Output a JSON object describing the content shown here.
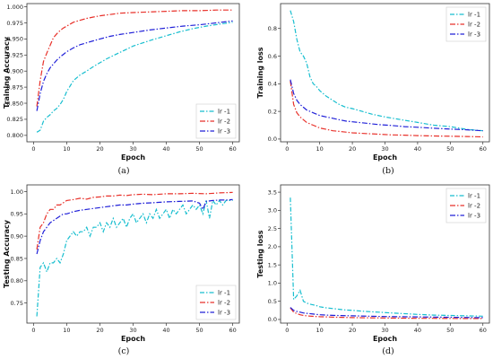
{
  "chart_data": [
    {
      "type": "line",
      "caption": "(a)",
      "xlabel": "Epoch",
      "ylabel": "Training Accuracy",
      "xlim": [
        -2,
        62
      ],
      "ylim": [
        0.79,
        1.005
      ],
      "xticks": [
        0,
        10,
        20,
        30,
        40,
        50,
        60
      ],
      "yticks": [
        0.8,
        0.825,
        0.85,
        0.875,
        0.9,
        0.925,
        0.95,
        0.975,
        1.0
      ],
      "ytick_labels": [
        "0.800",
        "0.825",
        "0.850",
        "0.875",
        "0.900",
        "0.925",
        "0.950",
        "0.975",
        "1.000"
      ],
      "legend_position": "bottom-right",
      "grid": false,
      "series": [
        {
          "name": "lr -1",
          "color": "#17BECF",
          "x": [
            1,
            2,
            3,
            4,
            5,
            6,
            7,
            8,
            9,
            10,
            12,
            14,
            16,
            18,
            20,
            22,
            24,
            26,
            28,
            30,
            33,
            36,
            40,
            44,
            48,
            52,
            56,
            60
          ],
          "y": [
            0.805,
            0.808,
            0.822,
            0.828,
            0.832,
            0.838,
            0.842,
            0.848,
            0.856,
            0.868,
            0.885,
            0.894,
            0.9,
            0.907,
            0.913,
            0.919,
            0.924,
            0.929,
            0.934,
            0.939,
            0.944,
            0.949,
            0.955,
            0.961,
            0.966,
            0.97,
            0.973,
            0.976
          ]
        },
        {
          "name": "lr -2",
          "color": "#E8312A",
          "x": [
            1,
            2,
            3,
            4,
            5,
            6,
            7,
            8,
            9,
            10,
            12,
            14,
            16,
            18,
            20,
            23,
            26,
            30,
            35,
            40,
            45,
            50,
            55,
            60
          ],
          "y": [
            0.845,
            0.885,
            0.915,
            0.928,
            0.94,
            0.952,
            0.958,
            0.963,
            0.967,
            0.97,
            0.976,
            0.979,
            0.982,
            0.984,
            0.986,
            0.988,
            0.99,
            0.991,
            0.992,
            0.993,
            0.994,
            0.994,
            0.995,
            0.995
          ]
        },
        {
          "name": "lr -3",
          "color": "#2020D8",
          "x": [
            1,
            2,
            3,
            4,
            5,
            6,
            7,
            8,
            9,
            10,
            12,
            14,
            16,
            18,
            20,
            23,
            26,
            30,
            35,
            40,
            45,
            50,
            55,
            60
          ],
          "y": [
            0.838,
            0.865,
            0.884,
            0.896,
            0.905,
            0.911,
            0.917,
            0.922,
            0.926,
            0.93,
            0.936,
            0.941,
            0.944,
            0.947,
            0.95,
            0.954,
            0.957,
            0.96,
            0.964,
            0.967,
            0.97,
            0.972,
            0.975,
            0.978
          ]
        }
      ]
    },
    {
      "type": "line",
      "caption": "(b)",
      "xlabel": "Epoch",
      "ylabel": "Training loss",
      "xlim": [
        -2,
        62
      ],
      "ylim": [
        -0.02,
        0.98
      ],
      "xticks": [
        0,
        10,
        20,
        30,
        40,
        50,
        60
      ],
      "yticks": [
        0.0,
        0.2,
        0.4,
        0.6,
        0.8
      ],
      "ytick_labels": [
        "0.0",
        "0.2",
        "0.4",
        "0.6",
        "0.8"
      ],
      "legend_position": "top-right",
      "grid": false,
      "series": [
        {
          "name": "lr -1",
          "color": "#17BECF",
          "x": [
            1,
            2,
            3,
            4,
            5,
            6,
            7,
            8,
            9,
            10,
            12,
            14,
            16,
            18,
            20,
            23,
            26,
            30,
            35,
            40,
            45,
            50,
            55,
            60
          ],
          "y": [
            0.93,
            0.85,
            0.72,
            0.63,
            0.6,
            0.55,
            0.45,
            0.4,
            0.38,
            0.35,
            0.31,
            0.28,
            0.25,
            0.23,
            0.22,
            0.2,
            0.18,
            0.16,
            0.14,
            0.12,
            0.1,
            0.09,
            0.07,
            0.06
          ]
        },
        {
          "name": "lr -2",
          "color": "#E8312A",
          "x": [
            1,
            2,
            3,
            4,
            5,
            6,
            7,
            8,
            10,
            12,
            14,
            16,
            18,
            20,
            24,
            28,
            32,
            36,
            40,
            45,
            50,
            55,
            60
          ],
          "y": [
            0.42,
            0.25,
            0.19,
            0.16,
            0.14,
            0.12,
            0.11,
            0.1,
            0.08,
            0.07,
            0.06,
            0.055,
            0.05,
            0.045,
            0.04,
            0.035,
            0.03,
            0.028,
            0.025,
            0.022,
            0.02,
            0.018,
            0.016
          ]
        },
        {
          "name": "lr -3",
          "color": "#2020D8",
          "x": [
            1,
            2,
            3,
            4,
            5,
            6,
            7,
            8,
            10,
            12,
            14,
            16,
            18,
            20,
            24,
            28,
            32,
            36,
            40,
            45,
            50,
            55,
            60
          ],
          "y": [
            0.43,
            0.33,
            0.28,
            0.25,
            0.23,
            0.21,
            0.2,
            0.19,
            0.17,
            0.16,
            0.15,
            0.14,
            0.13,
            0.125,
            0.115,
            0.105,
            0.098,
            0.09,
            0.085,
            0.078,
            0.072,
            0.067,
            0.06
          ]
        }
      ]
    },
    {
      "type": "line",
      "caption": "(c)",
      "xlabel": "Epoch",
      "ylabel": "Testing Accuracy",
      "xlim": [
        -2,
        62
      ],
      "ylim": [
        0.705,
        1.015
      ],
      "xticks": [
        0,
        10,
        20,
        30,
        40,
        50,
        60
      ],
      "yticks": [
        0.75,
        0.8,
        0.85,
        0.9,
        0.95,
        1.0
      ],
      "ytick_labels": [
        "0.75",
        "0.80",
        "0.85",
        "0.90",
        "0.95",
        "1.00"
      ],
      "legend_position": "bottom-right",
      "grid": false,
      "series": [
        {
          "name": "lr -1",
          "color": "#17BECF",
          "x": [
            1,
            2,
            3,
            4,
            5,
            6,
            7,
            8,
            9,
            10,
            11,
            12,
            13,
            14,
            15,
            16,
            17,
            18,
            19,
            20,
            21,
            22,
            23,
            24,
            25,
            26,
            27,
            28,
            29,
            30,
            31,
            32,
            33,
            34,
            35,
            36,
            37,
            38,
            39,
            40,
            41,
            42,
            43,
            44,
            45,
            46,
            47,
            48,
            49,
            50,
            51,
            52,
            53,
            54,
            55,
            56,
            57,
            58,
            59,
            60
          ],
          "y": [
            0.72,
            0.83,
            0.84,
            0.82,
            0.84,
            0.84,
            0.85,
            0.84,
            0.86,
            0.89,
            0.9,
            0.91,
            0.9,
            0.91,
            0.91,
            0.92,
            0.9,
            0.92,
            0.92,
            0.93,
            0.91,
            0.93,
            0.92,
            0.94,
            0.92,
            0.93,
            0.94,
            0.92,
            0.94,
            0.95,
            0.93,
            0.94,
            0.95,
            0.93,
            0.95,
            0.94,
            0.96,
            0.94,
            0.95,
            0.96,
            0.94,
            0.96,
            0.95,
            0.96,
            0.97,
            0.95,
            0.96,
            0.97,
            0.96,
            0.97,
            0.95,
            0.98,
            0.94,
            0.98,
            0.97,
            0.98,
            0.97,
            0.98,
            0.98,
            0.98
          ]
        },
        {
          "name": "lr -2",
          "color": "#E8312A",
          "x": [
            1,
            2,
            3,
            4,
            5,
            6,
            7,
            8,
            9,
            10,
            12,
            14,
            16,
            18,
            20,
            22,
            24,
            26,
            28,
            30,
            33,
            36,
            40,
            44,
            48,
            52,
            56,
            60
          ],
          "y": [
            0.87,
            0.92,
            0.93,
            0.95,
            0.96,
            0.96,
            0.97,
            0.97,
            0.975,
            0.98,
            0.982,
            0.985,
            0.983,
            0.987,
            0.988,
            0.99,
            0.99,
            0.992,
            0.991,
            0.993,
            0.994,
            0.993,
            0.995,
            0.995,
            0.996,
            0.995,
            0.997,
            0.998
          ]
        },
        {
          "name": "lr -3",
          "color": "#2020D8",
          "x": [
            1,
            2,
            3,
            4,
            5,
            6,
            7,
            8,
            9,
            10,
            12,
            14,
            16,
            18,
            20,
            22,
            24,
            26,
            28,
            30,
            33,
            36,
            40,
            44,
            48,
            50,
            51,
            52,
            54,
            56,
            58,
            60
          ],
          "y": [
            0.86,
            0.89,
            0.91,
            0.92,
            0.93,
            0.935,
            0.94,
            0.945,
            0.95,
            0.95,
            0.955,
            0.958,
            0.96,
            0.962,
            0.964,
            0.966,
            0.968,
            0.97,
            0.97,
            0.972,
            0.974,
            0.975,
            0.977,
            0.978,
            0.979,
            0.974,
            0.96,
            0.978,
            0.98,
            0.981,
            0.981,
            0.982
          ]
        }
      ]
    },
    {
      "type": "line",
      "caption": "(d)",
      "xlabel": "Epoch",
      "ylabel": "Testing loss",
      "xlim": [
        -2,
        62
      ],
      "ylim": [
        -0.1,
        3.7
      ],
      "xticks": [
        0,
        10,
        20,
        30,
        40,
        50,
        60
      ],
      "yticks": [
        0.0,
        0.5,
        1.0,
        1.5,
        2.0,
        2.5,
        3.0,
        3.5
      ],
      "ytick_labels": [
        "0.0",
        "0.5",
        "1.0",
        "1.5",
        "2.0",
        "2.5",
        "3.0",
        "3.5"
      ],
      "legend_position": "top-right",
      "grid": false,
      "series": [
        {
          "name": "lr -1",
          "color": "#17BECF",
          "x": [
            1,
            2,
            3,
            4,
            5,
            6,
            7,
            8,
            9,
            10,
            12,
            14,
            16,
            18,
            20,
            24,
            28,
            32,
            36,
            40,
            45,
            50,
            55,
            60
          ],
          "y": [
            3.35,
            0.55,
            0.65,
            0.8,
            0.5,
            0.45,
            0.42,
            0.4,
            0.38,
            0.35,
            0.32,
            0.3,
            0.28,
            0.26,
            0.25,
            0.22,
            0.2,
            0.18,
            0.16,
            0.14,
            0.12,
            0.11,
            0.1,
            0.09
          ]
        },
        {
          "name": "lr -2",
          "color": "#E8312A",
          "x": [
            1,
            2,
            3,
            4,
            5,
            6,
            8,
            10,
            12,
            15,
            20,
            25,
            30,
            35,
            40,
            45,
            50,
            55,
            60
          ],
          "y": [
            0.32,
            0.2,
            0.16,
            0.13,
            0.11,
            0.1,
            0.085,
            0.075,
            0.07,
            0.06,
            0.05,
            0.045,
            0.04,
            0.035,
            0.032,
            0.03,
            0.028,
            0.026,
            0.025
          ]
        },
        {
          "name": "lr -3",
          "color": "#2020D8",
          "x": [
            1,
            2,
            3,
            4,
            5,
            6,
            8,
            10,
            12,
            15,
            20,
            25,
            30,
            35,
            40,
            45,
            50,
            55,
            60
          ],
          "y": [
            0.33,
            0.25,
            0.22,
            0.2,
            0.18,
            0.17,
            0.15,
            0.13,
            0.12,
            0.11,
            0.1,
            0.09,
            0.08,
            0.075,
            0.07,
            0.065,
            0.06,
            0.055,
            0.05
          ]
        }
      ]
    }
  ]
}
